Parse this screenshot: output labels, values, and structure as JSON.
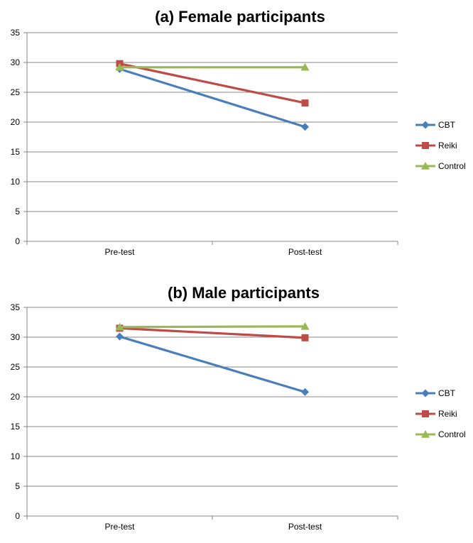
{
  "chart_data": [
    {
      "type": "line",
      "title": "(a) Female participants",
      "categories": [
        "Pre-test",
        "Post-test"
      ],
      "ylim": [
        0,
        35
      ],
      "yticks": [
        0,
        5,
        10,
        15,
        20,
        25,
        30,
        35
      ],
      "grid": true,
      "legend": "right",
      "series": [
        {
          "name": "CBT",
          "values": [
            28.9,
            19.2
          ],
          "color": "#4A7EBB",
          "marker": "diamond"
        },
        {
          "name": "Reiki",
          "values": [
            29.8,
            23.2
          ],
          "color": "#BE4B48",
          "marker": "square"
        },
        {
          "name": "Control",
          "values": [
            29.2,
            29.2
          ],
          "color": "#98B954",
          "marker": "triangle"
        }
      ]
    },
    {
      "type": "line",
      "title": "(b) Male participants",
      "categories": [
        "Pre-test",
        "Post-test"
      ],
      "ylim": [
        0,
        35
      ],
      "yticks": [
        0,
        5,
        10,
        15,
        20,
        25,
        30,
        35
      ],
      "grid": true,
      "legend": "right",
      "series": [
        {
          "name": "CBT",
          "values": [
            30.1,
            20.8
          ],
          "color": "#4A7EBB",
          "marker": "diamond"
        },
        {
          "name": "Reiki",
          "values": [
            31.5,
            29.9
          ],
          "color": "#BE4B48",
          "marker": "square"
        },
        {
          "name": "Control",
          "values": [
            31.7,
            31.8
          ],
          "color": "#98B954",
          "marker": "triangle"
        }
      ]
    }
  ]
}
